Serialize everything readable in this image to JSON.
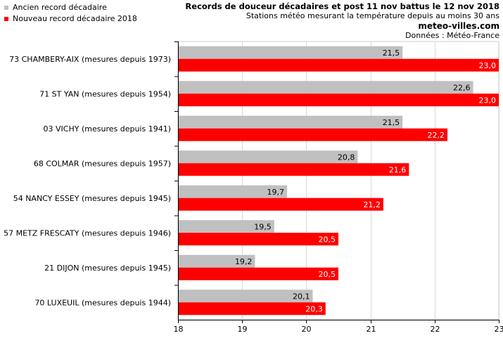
{
  "legend": [
    {
      "label": "Ancien record décadaire",
      "color": "#c0c0c0"
    },
    {
      "label": "Nouveau record décadaire 2018",
      "color": "#ff0000"
    }
  ],
  "header": {
    "title": "Records de douceur décadaires et post 11 nov battus le 12 nov 2018",
    "subtitle": "Stations météo mesurant la température depuis au moins 30 ans",
    "site": "meteo-villes.com",
    "source": "Données : Météo-France"
  },
  "chart_data": {
    "type": "bar",
    "orientation": "horizontal",
    "categories": [
      "73 CHAMBERY-AIX (mesures depuis 1973)",
      "71 ST YAN (mesures depuis 1954)",
      "03 VICHY (mesures depuis 1941)",
      "68 COLMAR (mesures depuis 1957)",
      "54 NANCY ESSEY (mesures depuis 1945)",
      "57 METZ FRESCATY (mesures depuis 1946)",
      "21 DIJON (mesures depuis 1945)",
      "70 LUXEUIL (mesures depuis 1944)"
    ],
    "series": [
      {
        "name": "Ancien record décadaire",
        "color": "#c0c0c0",
        "values": [
          21.5,
          22.6,
          21.5,
          20.8,
          19.7,
          19.5,
          19.2,
          20.1
        ],
        "labels": [
          "21,5",
          "22,6",
          "21,5",
          "20,8",
          "19,7",
          "19,5",
          "19,2",
          "20,1"
        ]
      },
      {
        "name": "Nouveau record décadaire 2018",
        "color": "#ff0000",
        "values": [
          23.0,
          23.0,
          22.2,
          21.6,
          21.2,
          20.5,
          20.5,
          20.3
        ],
        "labels": [
          "23,0",
          "23,0",
          "22,2",
          "21,6",
          "21,2",
          "20,5",
          "20,5",
          "20,3"
        ]
      }
    ],
    "xlim": [
      18,
      23
    ],
    "xticks": [
      18,
      19,
      20,
      21,
      22,
      23
    ],
    "grid": true
  }
}
